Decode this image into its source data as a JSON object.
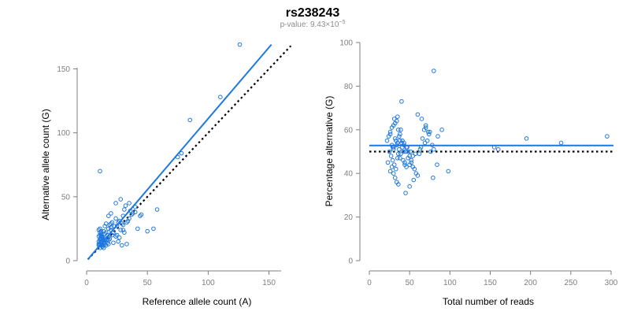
{
  "chart_data": [
    {
      "type": "scatter",
      "title": "rs238243",
      "subtitle": "p-value: 9.43×10",
      "subtitle_exponent": "−5",
      "xlabel": "Reference allele count (A)",
      "ylabel": "Alternative allele count (G)",
      "xlim": [
        0,
        160
      ],
      "ylim": [
        0,
        170
      ],
      "xticks": [
        "0",
        "50",
        "100",
        "150"
      ],
      "yticks": [
        "0",
        "50",
        "100",
        "150"
      ],
      "grid": false,
      "point_color": "#1f77e0",
      "fit_line": {
        "color": "#1f77e0",
        "style": "solid",
        "x": [
          1,
          152
        ],
        "y": [
          1,
          169
        ]
      },
      "reference_line": {
        "color": "#000000",
        "style": "dotted",
        "x": [
          1,
          168
        ],
        "y": [
          1,
          168
        ]
      },
      "x": [
        10,
        11,
        12,
        13,
        10,
        11,
        12,
        14,
        15,
        16,
        11,
        12,
        13,
        10,
        11,
        12,
        13,
        14,
        10,
        11,
        12,
        13,
        14,
        11,
        12,
        13,
        15,
        16,
        17,
        18,
        12,
        10,
        11,
        13,
        14,
        12,
        16,
        15,
        17,
        18,
        20,
        21,
        22,
        19,
        18,
        20,
        25,
        26,
        28,
        27,
        24,
        29,
        30,
        32,
        31,
        33,
        34,
        35,
        36,
        37,
        28,
        30,
        40,
        38,
        42,
        44,
        45,
        40,
        35,
        30,
        22,
        20,
        18,
        25,
        27,
        23,
        21,
        19,
        26,
        24,
        29,
        31,
        33,
        55,
        58,
        50,
        85,
        110,
        126,
        75,
        78,
        11,
        15,
        14,
        16,
        20,
        18,
        13,
        12,
        11,
        24
      ],
      "y": [
        15,
        16,
        17,
        18,
        19,
        20,
        21,
        14,
        13,
        12,
        22,
        23,
        18,
        24,
        25,
        19,
        17,
        16,
        12,
        13,
        14,
        11,
        10,
        17,
        20,
        19,
        21,
        22,
        20,
        18,
        14,
        13,
        12,
        11,
        12,
        15,
        16,
        17,
        14,
        13,
        24,
        20,
        22,
        28,
        35,
        37,
        27,
        30,
        24,
        31,
        33,
        29,
        35,
        43,
        40,
        30,
        31,
        45,
        39,
        36,
        48,
        28,
        38,
        37,
        25,
        35,
        36,
        42,
        33,
        24,
        14,
        26,
        16,
        20,
        18,
        27,
        30,
        17,
        15,
        19,
        12,
        22,
        13,
        25,
        40,
        23,
        110,
        128,
        169,
        81,
        84,
        70,
        27,
        23,
        29,
        29,
        25,
        13,
        12,
        10,
        45
      ]
    },
    {
      "type": "scatter",
      "xlabel": "Total number of reads",
      "ylabel": "Percentage alternative (G)",
      "xlim": [
        0,
        300
      ],
      "ylim": [
        0,
        100
      ],
      "xticks": [
        "0",
        "50",
        "100",
        "150",
        "200",
        "250",
        "300"
      ],
      "yticks": [
        "0",
        "20",
        "40",
        "60",
        "80",
        "100"
      ],
      "grid": false,
      "point_color": "#1f77e0",
      "fit_line": {
        "color": "#1f77e0",
        "style": "solid",
        "y": 52.8
      },
      "reference_line": {
        "color": "#000000",
        "style": "dotted",
        "y": 50
      },
      "x": [
        22,
        24,
        26,
        28,
        30,
        32,
        34,
        36,
        38,
        25,
        27,
        29,
        31,
        33,
        35,
        37,
        39,
        41,
        23,
        26,
        28,
        30,
        32,
        34,
        36,
        38,
        40,
        42,
        44,
        46,
        48,
        50,
        52,
        54,
        56,
        58,
        60,
        62,
        64,
        66,
        68,
        70,
        72,
        74,
        76,
        78,
        80,
        35,
        40,
        45,
        50,
        55,
        60,
        65,
        70,
        75,
        80,
        85,
        30,
        32,
        34,
        36,
        38,
        42,
        44,
        46,
        48,
        50,
        52,
        54,
        28,
        30,
        33,
        37,
        41,
        43,
        47,
        51,
        57,
        63,
        69,
        73,
        79,
        84,
        90,
        98,
        155,
        160,
        195,
        238,
        295,
        26,
        29,
        31,
        35,
        39,
        43,
        45
      ],
      "y": [
        55,
        57,
        59,
        61,
        62,
        63,
        64,
        60,
        58,
        50,
        48,
        46,
        44,
        42,
        47,
        51,
        49,
        52,
        45,
        41,
        43,
        40,
        38,
        36,
        35,
        55,
        54,
        50,
        45,
        43,
        47,
        44,
        46,
        48,
        42,
        40,
        39,
        49,
        52,
        56,
        60,
        61,
        55,
        58,
        50,
        53,
        51,
        54,
        73,
        31,
        34,
        37,
        67,
        65,
        62,
        59,
        87,
        57,
        52,
        56,
        53,
        49,
        47,
        46,
        44,
        52,
        50,
        48,
        45,
        43,
        53,
        51,
        55,
        57,
        55,
        53,
        52,
        50,
        49,
        51,
        54,
        59,
        38,
        44,
        60,
        41,
        52,
        51,
        56,
        54,
        57,
        58,
        52,
        65,
        66,
        60,
        54,
        50
      ]
    }
  ]
}
